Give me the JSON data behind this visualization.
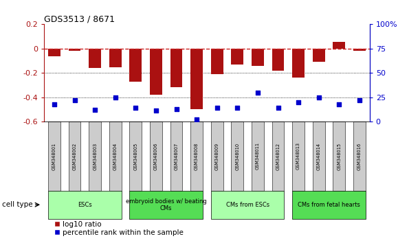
{
  "title": "GDS3513 / 8671",
  "samples": [
    "GSM348001",
    "GSM348002",
    "GSM348003",
    "GSM348004",
    "GSM348005",
    "GSM348006",
    "GSM348007",
    "GSM348008",
    "GSM348009",
    "GSM348010",
    "GSM348011",
    "GSM348012",
    "GSM348013",
    "GSM348014",
    "GSM348015",
    "GSM348016"
  ],
  "log10_ratio": [
    -0.065,
    -0.02,
    -0.16,
    -0.155,
    -0.27,
    -0.38,
    -0.32,
    -0.5,
    -0.21,
    -0.13,
    -0.145,
    -0.18,
    -0.24,
    -0.11,
    0.055,
    -0.02
  ],
  "percentile_rank": [
    18,
    22,
    12,
    25,
    14,
    11,
    13,
    2,
    14,
    14,
    30,
    14,
    20,
    25,
    18,
    22
  ],
  "ylim_left": [
    -0.6,
    0.2
  ],
  "ylim_right": [
    0,
    100
  ],
  "yticks_left": [
    -0.6,
    -0.4,
    -0.2,
    0.0,
    0.2
  ],
  "yticks_right": [
    0,
    25,
    50,
    75,
    100
  ],
  "ytick_labels_left": [
    "-0.6",
    "-0.4",
    "-0.2",
    "0",
    "0.2"
  ],
  "ytick_labels_right": [
    "0",
    "25",
    "50",
    "75",
    "100%"
  ],
  "bar_color": "#AA1111",
  "dot_color": "#0000CC",
  "hline_color": "#CC2222",
  "grid_color": "#000000",
  "cell_types": [
    {
      "label": "ESCs",
      "start": 0,
      "end": 3,
      "color": "#AAFFAA"
    },
    {
      "label": "embryoid bodies w/ beating\nCMs",
      "start": 4,
      "end": 7,
      "color": "#55DD55"
    },
    {
      "label": "CMs from ESCs",
      "start": 8,
      "end": 11,
      "color": "#AAFFAA"
    },
    {
      "label": "CMs from fetal hearts",
      "start": 12,
      "end": 15,
      "color": "#55DD55"
    }
  ],
  "legend_items": [
    {
      "label": "log10 ratio",
      "color": "#AA1111"
    },
    {
      "label": "percentile rank within the sample",
      "color": "#0000CC"
    }
  ],
  "cell_type_label": "cell type",
  "bg_color": "#FFFFFF",
  "tick_bg_color": "#CCCCCC"
}
